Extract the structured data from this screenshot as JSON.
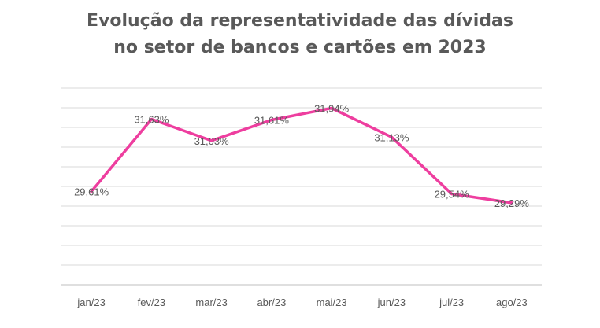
{
  "title_lines": [
    "Evolução da representatividade das dívidas",
    "no setor de bancos e cartões em 2023"
  ],
  "chart_data": {
    "type": "line",
    "title": "Evolução da representatividade das dívidas no setor de bancos e cartões em 2023",
    "categories": [
      "jan/23",
      "fev/23",
      "mar/23",
      "abr/23",
      "mai/23",
      "jun/23",
      "jul/23",
      "ago/23"
    ],
    "series": [
      {
        "values": [
          29.61,
          31.63,
          31.03,
          31.61,
          31.94,
          31.13,
          29.54,
          29.29
        ],
        "labels": [
          "29,61%",
          "31,63%",
          "31,03%",
          "31,61%",
          "31,94%",
          "31,13%",
          "29,54%",
          "29,29%"
        ],
        "color": "#ee3e9f"
      }
    ],
    "ylim": [
      27.0,
      32.5
    ],
    "grid": true,
    "legend": "none",
    "y_tick_labels_shown": false
  }
}
